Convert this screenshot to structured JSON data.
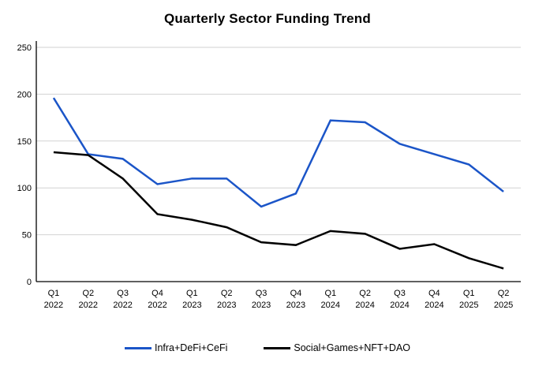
{
  "page": {
    "background": "#ffffff",
    "text_color": "#000000",
    "gridline_color": "#d2d2d2",
    "axis_color": "#000000"
  },
  "chart_data": {
    "type": "line",
    "title": "Quarterly Sector Funding Trend",
    "xlabel": "",
    "ylabel": "",
    "ylim": [
      0,
      250
    ],
    "yticks": [
      0,
      50,
      100,
      150,
      200,
      250
    ],
    "grid": true,
    "legend_position": "bottom",
    "categories": [
      "Q1 2022",
      "Q2 2022",
      "Q3 2022",
      "Q4 2022",
      "Q1 2023",
      "Q2 2023",
      "Q3 2023",
      "Q4 2023",
      "Q1 2024",
      "Q2 2024",
      "Q3 2024",
      "Q4 2024",
      "Q1 2025",
      "Q2 2025"
    ],
    "series": [
      {
        "name": "Infra+DeFi+CeFi",
        "color": "#1b55c8",
        "values": [
          196,
          136,
          131,
          104,
          110,
          110,
          80,
          94,
          172,
          170,
          147,
          136,
          125,
          96
        ]
      },
      {
        "name": "Social+Games+NFT+DAO",
        "color": "#000000",
        "values": [
          138,
          135,
          110,
          72,
          66,
          58,
          42,
          39,
          54,
          51,
          35,
          40,
          25,
          14
        ]
      }
    ]
  }
}
